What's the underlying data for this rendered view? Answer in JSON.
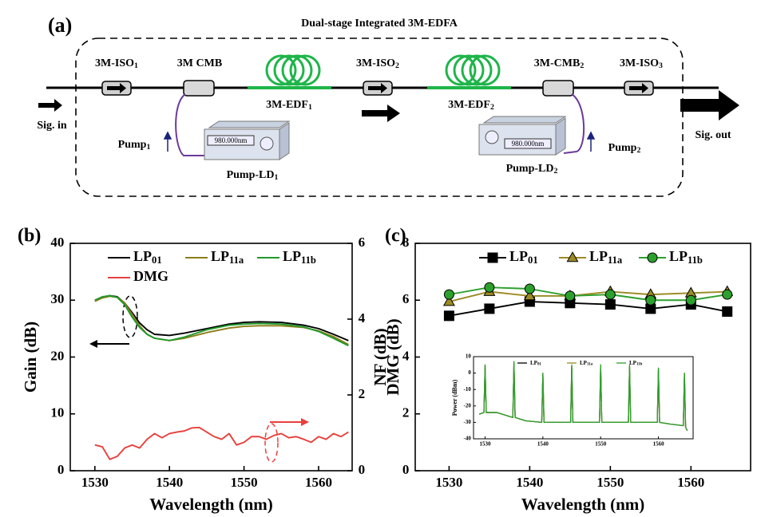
{
  "diagram": {
    "panel_label": "(a)",
    "title": "Dual-stage Integrated 3M-EDFA",
    "iso1": "3M-ISO1",
    "cmb1": "3M CMB",
    "edf1": "3M-EDF1",
    "iso2": "3M-ISO2",
    "edf2": "3M-EDF2",
    "cmb2": "3M-CMB2",
    "iso3": "3M-ISO3",
    "sig_in": "Sig. in",
    "sig_out": "Sig. out",
    "pump1": "Pump1",
    "pump2": "Pump2",
    "ld1": "Pump-LD1",
    "ld2": "Pump-LD2",
    "ld1_display": "980.000nm",
    "ld2_display": "980.000nm"
  },
  "chart_data": [
    {
      "type": "line",
      "panel_label": "(b)",
      "xlabel": "Wavelength (nm)",
      "ylabel": "Gain (dB)",
      "y2label": "DMG (dB)",
      "xlim": [
        1526.7,
        1564.5
      ],
      "xticks": [
        1530,
        1540,
        1550,
        1560
      ],
      "ylim": [
        0,
        40
      ],
      "yticks": [
        0,
        10,
        20,
        30,
        40
      ],
      "y2lim": [
        0,
        6
      ],
      "y2ticks": [
        0,
        2,
        4,
        6
      ],
      "series": [
        {
          "name": "LP01",
          "color": "#000000",
          "x": [
            1530,
            1531,
            1532,
            1533,
            1534,
            1535,
            1536,
            1537,
            1538,
            1540,
            1542,
            1545,
            1548,
            1550,
            1552,
            1555,
            1558,
            1560,
            1562,
            1564
          ],
          "values": [
            30.0,
            30.5,
            30.8,
            30.6,
            29.5,
            27.8,
            26.0,
            24.8,
            24.0,
            23.8,
            24.2,
            25.0,
            25.8,
            26.1,
            26.2,
            26.1,
            25.6,
            25.0,
            24.0,
            22.9
          ]
        },
        {
          "name": "LP11a",
          "color": "#8c7d16",
          "x": [
            1530,
            1531,
            1532,
            1533,
            1534,
            1535,
            1536,
            1537,
            1538,
            1540,
            1542,
            1545,
            1548,
            1550,
            1552,
            1555,
            1558,
            1560,
            1562,
            1564
          ],
          "values": [
            29.8,
            30.4,
            30.7,
            30.5,
            29.5,
            27.5,
            25.5,
            24.0,
            23.3,
            22.9,
            23.3,
            24.3,
            25.1,
            25.4,
            25.5,
            25.5,
            25.2,
            24.6,
            23.6,
            22.2
          ]
        },
        {
          "name": "LP11b",
          "color": "#1f9a2a",
          "x": [
            1530,
            1531,
            1532,
            1533,
            1534,
            1535,
            1536,
            1537,
            1538,
            1540,
            1542,
            1545,
            1548,
            1550,
            1552,
            1555,
            1558,
            1560,
            1562,
            1564
          ],
          "values": [
            30.0,
            30.6,
            30.8,
            30.5,
            29.2,
            27.0,
            25.2,
            24.0,
            23.3,
            22.9,
            23.5,
            24.8,
            25.6,
            25.8,
            25.9,
            25.8,
            25.3,
            24.5,
            23.3,
            22.0
          ]
        },
        {
          "name": "DMG",
          "color": "#e8403c",
          "axis": "y2",
          "x": [
            1530,
            1531,
            1532,
            1533,
            1534,
            1535,
            1536,
            1537,
            1538,
            1539,
            1540,
            1541,
            1542,
            1543,
            1544,
            1545,
            1546,
            1547,
            1548,
            1549,
            1550,
            1551,
            1552,
            1553,
            1554,
            1555,
            1556,
            1557,
            1558,
            1559,
            1560,
            1561,
            1562,
            1563,
            1564
          ],
          "values": [
            0.68,
            0.63,
            0.3,
            0.38,
            0.6,
            0.68,
            0.6,
            0.83,
            0.98,
            0.87,
            0.98,
            1.02,
            1.05,
            1.13,
            1.14,
            1.02,
            0.9,
            0.83,
            0.98,
            0.68,
            0.75,
            0.9,
            0.9,
            0.83,
            0.93,
            0.98,
            0.87,
            0.9,
            0.83,
            0.75,
            0.9,
            0.83,
            0.98,
            0.9,
            1.02
          ]
        }
      ]
    },
    {
      "type": "line",
      "panel_label": "(c)",
      "xlabel": "Wavelength (nm)",
      "ylabel": "NF (dB)",
      "xlim": [
        1525.8,
        1567.4
      ],
      "xticks": [
        1530,
        1540,
        1550,
        1560
      ],
      "ylim": [
        0,
        8
      ],
      "yticks": [
        0,
        2,
        4,
        6,
        8
      ],
      "x": [
        1530,
        1535,
        1540,
        1545,
        1550,
        1555,
        1560,
        1564.5
      ],
      "series": [
        {
          "name": "LP01",
          "color": "#000000",
          "marker": "square",
          "values": [
            5.45,
            5.7,
            5.95,
            5.9,
            5.85,
            5.7,
            5.85,
            5.6
          ]
        },
        {
          "name": "LP11a",
          "color": "#9b8b23",
          "marker": "triangle",
          "values": [
            5.95,
            6.3,
            6.15,
            6.15,
            6.3,
            6.2,
            6.25,
            6.3
          ]
        },
        {
          "name": "LP11b",
          "color": "#2ca02c",
          "marker": "circle",
          "values": [
            6.2,
            6.45,
            6.4,
            6.15,
            6.2,
            6.0,
            6.0,
            6.2
          ]
        }
      ]
    },
    {
      "type": "line",
      "ylabel": "Power (dBm)",
      "xlim": [
        1528,
        1566
      ],
      "xticks": [
        1530,
        1540,
        1550,
        1560
      ],
      "ylim": [
        -40,
        10
      ],
      "yticks": [
        -40,
        -30,
        -20,
        -10,
        0,
        10
      ],
      "x": [
        1529,
        1529.8,
        1530,
        1530.2,
        1532,
        1534.8,
        1535,
        1535.2,
        1537,
        1539.8,
        1540,
        1540.2,
        1542,
        1544.8,
        1545,
        1545.2,
        1547,
        1549.8,
        1550,
        1550.2,
        1552,
        1554.8,
        1555,
        1555.2,
        1557,
        1559.8,
        1560,
        1560.2,
        1562,
        1564.3,
        1564.5,
        1564.7,
        1565
      ],
      "series": [
        {
          "name": "LP01",
          "color": "#000000",
          "values": [
            -25,
            -24,
            4,
            -24,
            -24,
            -27,
            6,
            -27,
            -29,
            -30,
            -1,
            -30,
            -30,
            -30,
            4,
            -30,
            -30,
            -30,
            4,
            -30,
            -30,
            -30,
            4,
            -30,
            -30,
            -30,
            2,
            -30,
            -31,
            -32,
            -1,
            -33,
            -35
          ]
        },
        {
          "name": "LP11a",
          "color": "#9b8b23",
          "values": [
            -25,
            -24,
            5,
            -24,
            -24,
            -27,
            6,
            -27,
            -29,
            -30,
            0,
            -30,
            -30,
            -30,
            4,
            -30,
            -30,
            -30,
            5,
            -30,
            -30,
            -30,
            4,
            -30,
            -30,
            -30,
            3,
            -30,
            -31,
            -32,
            0,
            -33,
            -35
          ]
        },
        {
          "name": "LP11b",
          "color": "#2ca02c",
          "values": [
            -25,
            -24,
            5,
            -24,
            -24,
            -27,
            7,
            -27,
            -29,
            -30,
            0,
            -30,
            -30,
            -30,
            5,
            -30,
            -30,
            -30,
            5,
            -30,
            -30,
            -30,
            5,
            -30,
            -30,
            -30,
            3,
            -30,
            -31,
            -32,
            0,
            -33,
            -35
          ]
        }
      ]
    }
  ]
}
